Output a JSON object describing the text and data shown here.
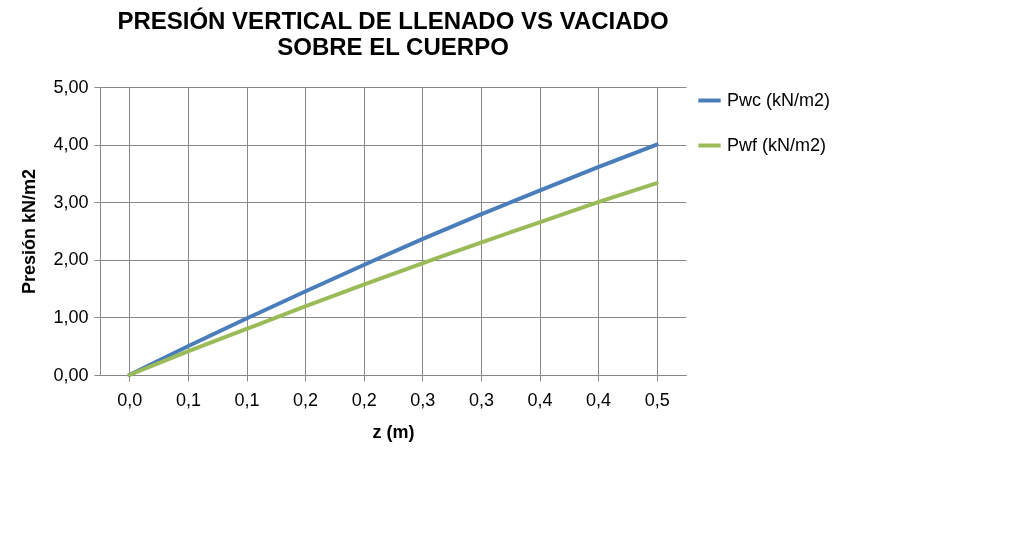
{
  "chart_data": {
    "type": "line",
    "title": "PRESIÓN VERTICAL DE LLENADO VS VACIADO SOBRE EL CUERPO",
    "xlabel": "z (m)",
    "ylabel": "Presión kN/m2",
    "categories": [
      "0,0",
      "0,1",
      "0,1",
      "0,2",
      "0,2",
      "0,3",
      "0,3",
      "0,4",
      "0,4",
      "0,5"
    ],
    "series": [
      {
        "name": "Pwc (kN/m2)",
        "color": "#4a7ebb",
        "values": [
          0,
          0.5,
          0.98,
          1.45,
          1.91,
          2.36,
          2.79,
          3.2,
          3.61,
          4.0
        ]
      },
      {
        "name": "Pwf (kN/m2)",
        "color": "#9bbb59",
        "values": [
          0,
          0.41,
          0.8,
          1.19,
          1.57,
          1.94,
          2.3,
          2.65,
          3.0,
          3.33
        ]
      }
    ],
    "ylim": [
      0,
      5
    ],
    "yticks": [
      {
        "value": 0,
        "label": "0,00"
      },
      {
        "value": 1,
        "label": "1,00"
      },
      {
        "value": 2,
        "label": "2,00"
      },
      {
        "value": 3,
        "label": "3,00"
      },
      {
        "value": 4,
        "label": "4,00"
      },
      {
        "value": 5,
        "label": "5,00"
      }
    ],
    "grid": true,
    "legend": "right",
    "marker": "none",
    "line_style": "solid"
  }
}
